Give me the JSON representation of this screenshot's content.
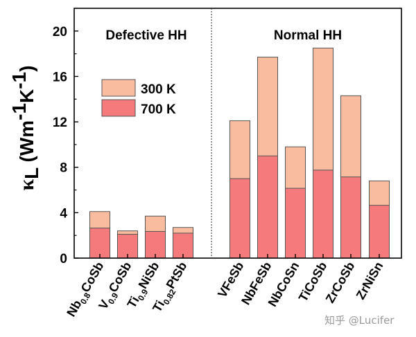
{
  "chart_data": {
    "type": "bar",
    "stacked_overlay": true,
    "ylabel": "κL (Wm-1K-1)",
    "ylim": [
      0,
      22
    ],
    "yticks": [
      0,
      4,
      8,
      12,
      16,
      20
    ],
    "groups": [
      {
        "title": "Defective HH",
        "categories": [
          "Nb0.8CoSb",
          "V0.9CoSb",
          "Ti0.9NiSb",
          "Ti0.82PtSb"
        ]
      },
      {
        "title": "Normal HH",
        "categories": [
          "VFeSb",
          "NbFeSb",
          "NbCoSn",
          "TiCoSb",
          "ZrCoSb",
          "ZrNiSn"
        ]
      }
    ],
    "categories": [
      "Nb0.8CoSb",
      "V0.9CoSb",
      "Ti0.9NiSb",
      "Ti0.82PtSb",
      "VFeSb",
      "NbFeSb",
      "NbCoSn",
      "TiCoSb",
      "ZrCoSb",
      "ZrNiSn"
    ],
    "category_parts": [
      {
        "base": "Nb",
        "sub": "0.8",
        "rest": "CoSb"
      },
      {
        "base": "V",
        "sub": "0.9",
        "rest": "CoSb"
      },
      {
        "base": "Ti",
        "sub": "0.9",
        "rest": "NiSb"
      },
      {
        "base": "Ti",
        "sub": "0.82",
        "rest": "PtSb"
      },
      {
        "base": "VFeSb",
        "sub": "",
        "rest": ""
      },
      {
        "base": "NbFeSb",
        "sub": "",
        "rest": ""
      },
      {
        "base": "NbCoSn",
        "sub": "",
        "rest": ""
      },
      {
        "base": "TiCoSb",
        "sub": "",
        "rest": ""
      },
      {
        "base": "ZrCoSb",
        "sub": "",
        "rest": ""
      },
      {
        "base": "ZrNiSn",
        "sub": "",
        "rest": ""
      }
    ],
    "series": [
      {
        "name": "300 K",
        "color": "#f9bc9f",
        "values": [
          4.1,
          2.4,
          3.7,
          2.7,
          12.1,
          17.7,
          9.8,
          18.5,
          14.3,
          6.8
        ]
      },
      {
        "name": "700 K",
        "color": "#f47a7c",
        "values": [
          2.65,
          2.1,
          2.35,
          2.2,
          7.0,
          9.0,
          6.15,
          7.75,
          7.15,
          4.65
        ]
      }
    ],
    "legend_position": "upper-left inside Defective HH panel",
    "divider": "dotted vertical line between groups",
    "grid": false
  },
  "watermark": "知乎 @Lucifer"
}
